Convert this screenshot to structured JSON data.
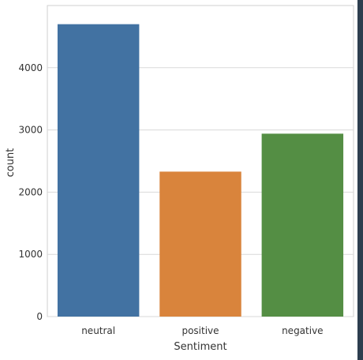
{
  "chart_data": {
    "type": "bar",
    "categories": [
      "neutral",
      "positive",
      "negative"
    ],
    "values": [
      4700,
      2330,
      2940
    ],
    "colors": [
      "#4272a2",
      "#d9843c",
      "#548e44"
    ],
    "title": "",
    "xlabel": "Sentiment",
    "ylabel": "count",
    "ylim": [
      0,
      5000
    ],
    "yticks": [
      0,
      1000,
      2000,
      3000,
      4000
    ],
    "ytick_labels": [
      "0",
      "1000",
      "2000",
      "3000",
      "4000"
    ],
    "grid": true,
    "background": "#ffffff",
    "grid_color": "#d9d9d9",
    "edge_strip_color": "#2d3e4f"
  }
}
